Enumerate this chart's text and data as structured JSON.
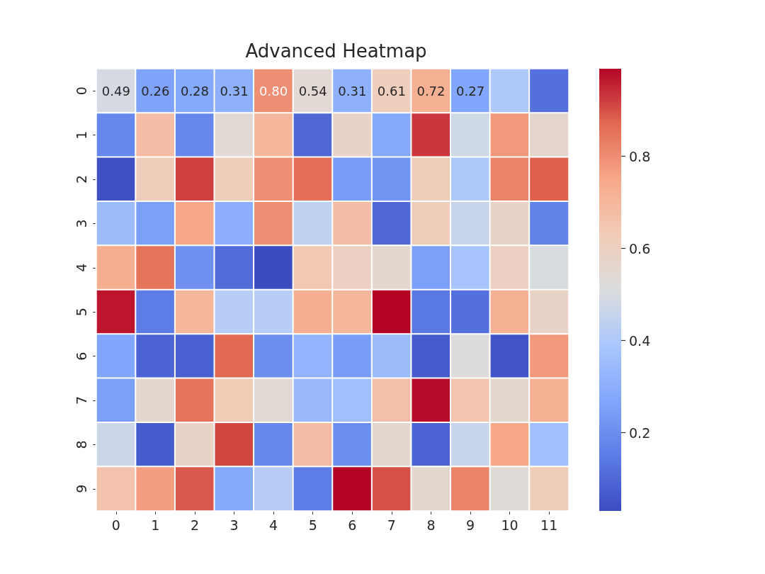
{
  "chart_data": {
    "type": "heatmap",
    "title": "Advanced Heatmap",
    "categories": [
      "0",
      "1",
      "2",
      "3",
      "4",
      "5",
      "6",
      "7",
      "8",
      "9",
      "10",
      "11"
    ],
    "y_categories": [
      "0",
      "1",
      "2",
      "3",
      "4",
      "5",
      "6",
      "7",
      "8",
      "9"
    ],
    "cells": [
      [
        0.49,
        0.26,
        0.28,
        0.31,
        0.8,
        0.54,
        0.31,
        0.61,
        0.72,
        0.27,
        0.4,
        0.12
      ],
      [
        0.18,
        0.68,
        0.18,
        0.54,
        0.7,
        0.1,
        0.58,
        0.28,
        0.93,
        0.48,
        0.78,
        0.56
      ],
      [
        0.04,
        0.62,
        0.92,
        0.62,
        0.8,
        0.86,
        0.24,
        0.22,
        0.62,
        0.4,
        0.82,
        0.88
      ],
      [
        0.35,
        0.25,
        0.75,
        0.3,
        0.8,
        0.44,
        0.68,
        0.1,
        0.62,
        0.46,
        0.58,
        0.17
      ],
      [
        0.73,
        0.85,
        0.21,
        0.11,
        0.03,
        0.64,
        0.6,
        0.55,
        0.25,
        0.38,
        0.6,
        0.5
      ],
      [
        0.97,
        0.15,
        0.7,
        0.42,
        0.42,
        0.73,
        0.7,
        0.99,
        0.14,
        0.12,
        0.72,
        0.58
      ],
      [
        0.27,
        0.09,
        0.08,
        0.87,
        0.2,
        0.32,
        0.24,
        0.35,
        0.07,
        0.52,
        0.05,
        0.78
      ],
      [
        0.25,
        0.55,
        0.85,
        0.63,
        0.54,
        0.34,
        0.36,
        0.67,
        0.98,
        0.65,
        0.55,
        0.72
      ],
      [
        0.47,
        0.07,
        0.58,
        0.91,
        0.18,
        0.68,
        0.2,
        0.55,
        0.09,
        0.46,
        0.75,
        0.36
      ],
      [
        0.66,
        0.77,
        0.89,
        0.28,
        0.42,
        0.15,
        0.99,
        0.9,
        0.55,
        0.82,
        0.53,
        0.62
      ]
    ],
    "cell_labels": [
      [
        "0.49",
        "0.26",
        "0.28",
        "0.31",
        "0.80",
        "0.54",
        "0.31",
        "0.61",
        "0.72",
        "0.27",
        null,
        null
      ],
      [
        null,
        null,
        null,
        null,
        null,
        null,
        null,
        null,
        null,
        null,
        null,
        null
      ],
      [
        null,
        null,
        null,
        null,
        null,
        null,
        null,
        null,
        null,
        null,
        null,
        null
      ],
      [
        null,
        null,
        null,
        null,
        null,
        null,
        null,
        null,
        null,
        null,
        null,
        null
      ],
      [
        null,
        null,
        null,
        null,
        null,
        null,
        null,
        null,
        null,
        null,
        null,
        null
      ],
      [
        null,
        null,
        null,
        null,
        null,
        null,
        null,
        null,
        null,
        null,
        null,
        null
      ],
      [
        null,
        null,
        null,
        null,
        null,
        null,
        null,
        null,
        null,
        null,
        null,
        null
      ],
      [
        null,
        null,
        null,
        null,
        null,
        null,
        null,
        null,
        null,
        null,
        null,
        null
      ],
      [
        null,
        null,
        null,
        null,
        null,
        null,
        null,
        null,
        null,
        null,
        null,
        null
      ],
      [
        null,
        null,
        null,
        null,
        null,
        null,
        null,
        null,
        null,
        null,
        null,
        null
      ]
    ],
    "clim": [
      0.03,
      0.99
    ],
    "cticks": [
      0.2,
      0.4,
      0.6,
      0.8
    ]
  }
}
